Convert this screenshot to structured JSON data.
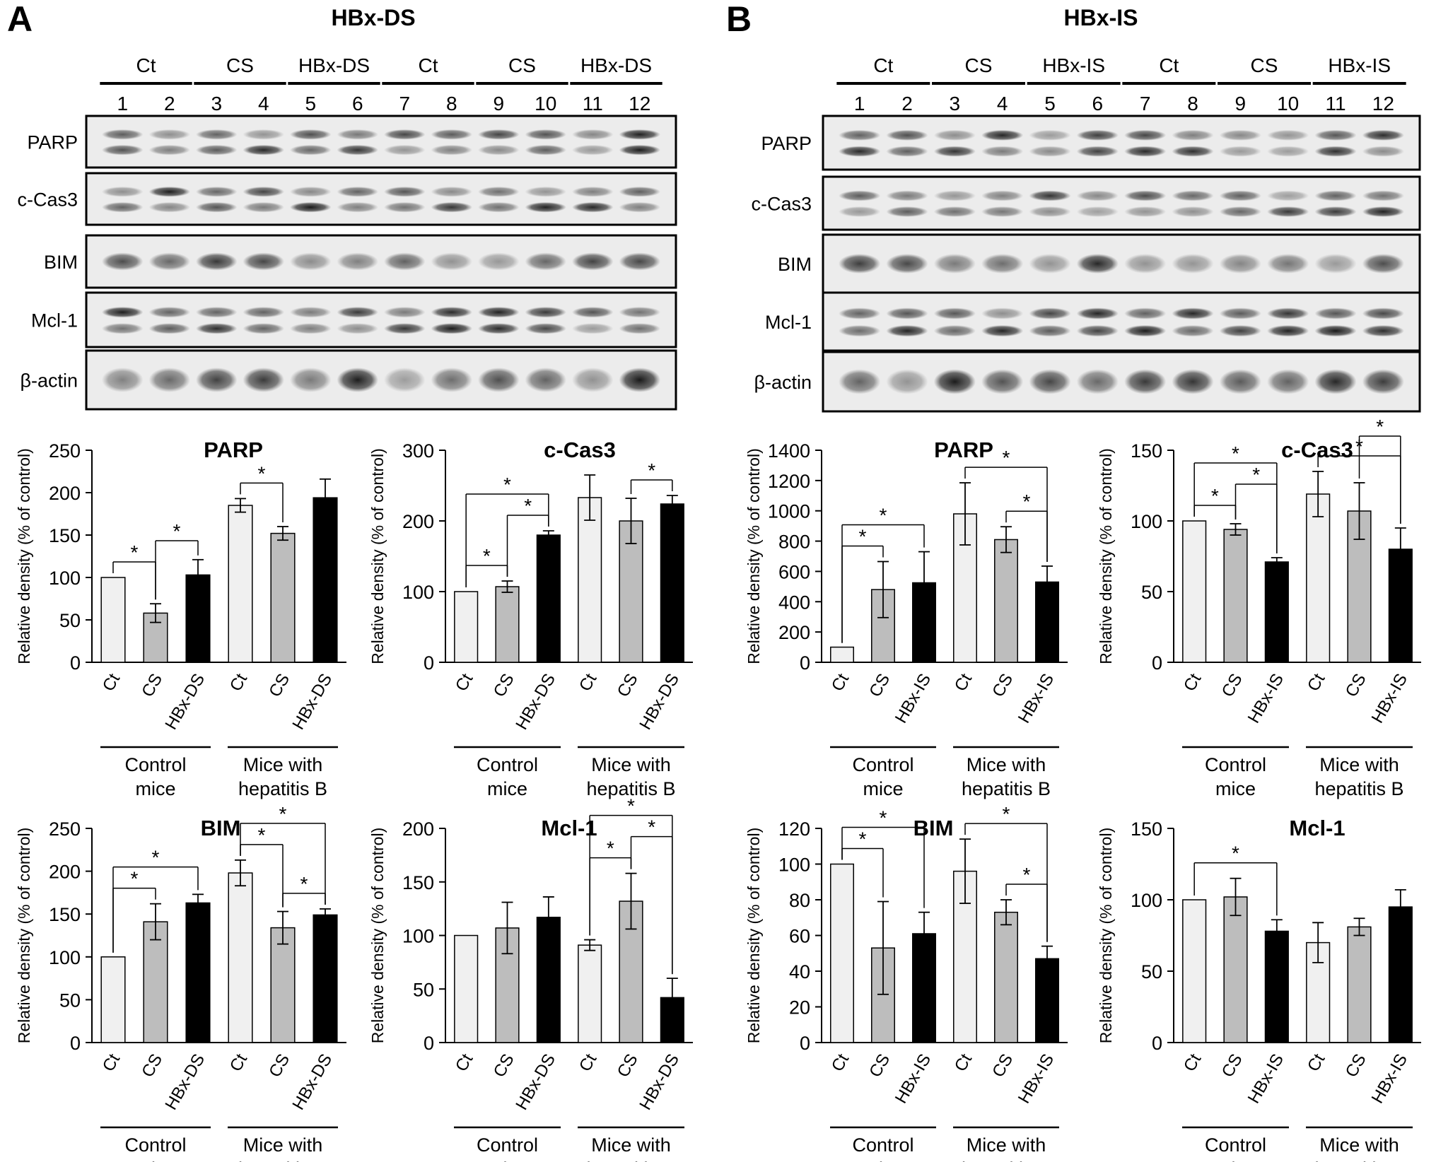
{
  "figure": {
    "panels": [
      {
        "letter": "A",
        "title": "HBx-DS",
        "group_labels": [
          "Ct",
          "CS",
          "HBx-DS",
          "Ct",
          "CS",
          "HBx-DS"
        ],
        "lane_numbers": [
          "1",
          "2",
          "3",
          "4",
          "5",
          "6",
          "7",
          "8",
          "9",
          "10",
          "11",
          "12"
        ],
        "blot_rows": [
          "PARP",
          "c-Cas3",
          "BIM",
          "Mcl-1",
          "β-actin"
        ]
      },
      {
        "letter": "B",
        "title": "HBx-IS",
        "group_labels": [
          "Ct",
          "CS",
          "HBx-IS",
          "Ct",
          "CS",
          "HBx-IS"
        ],
        "lane_numbers": [
          "1",
          "2",
          "3",
          "4",
          "5",
          "6",
          "7",
          "8",
          "9",
          "10",
          "11",
          "12"
        ],
        "blot_rows": [
          "PARP",
          "c-Cas3",
          "BIM",
          "Mcl-1",
          "β-actin"
        ]
      }
    ],
    "group_captions": [
      "Control mice",
      "Mice with hepatitis B"
    ],
    "colors": {
      "light": "#f0f0f0",
      "mid": "#bdbdbd",
      "dark": "#000000"
    }
  },
  "chart_data": [
    {
      "panel": "A",
      "type": "bar",
      "title": "PARP",
      "ylabel": "Relative density (% of control)",
      "ylim": [
        0,
        250
      ],
      "yticks": [
        0,
        50,
        100,
        150,
        200,
        250
      ],
      "categories": [
        "Ct",
        "CS",
        "HBx-DS",
        "Ct",
        "CS",
        "HBx-DS"
      ],
      "values": [
        100,
        58,
        103,
        185,
        152,
        194
      ],
      "errors": [
        0,
        11,
        18,
        8,
        8,
        22
      ],
      "significance": [
        [
          0,
          1
        ],
        [
          1,
          2
        ],
        [
          3,
          4
        ]
      ]
    },
    {
      "panel": "A",
      "type": "bar",
      "title": "c-Cas3",
      "ylabel": "Relative density (% of control)",
      "ylim": [
        0,
        300
      ],
      "yticks": [
        0,
        100,
        200,
        300
      ],
      "categories": [
        "Ct",
        "CS",
        "HBx-DS",
        "Ct",
        "CS",
        "HBx-DS"
      ],
      "values": [
        100,
        107,
        180,
        233,
        200,
        224
      ],
      "errors": [
        0,
        8,
        6,
        32,
        32,
        12
      ],
      "significance": [
        [
          0,
          1
        ],
        [
          1,
          2
        ],
        [
          0,
          2
        ],
        [
          4,
          5
        ]
      ]
    },
    {
      "panel": "A",
      "type": "bar",
      "title": "BIM",
      "ylabel": "Relative density (% of control)",
      "ylim": [
        0,
        250
      ],
      "yticks": [
        0,
        50,
        100,
        150,
        200,
        250
      ],
      "categories": [
        "Ct",
        "CS",
        "HBx-DS",
        "Ct",
        "CS",
        "HBx-DS"
      ],
      "values": [
        100,
        141,
        163,
        198,
        134,
        149
      ],
      "errors": [
        0,
        21,
        10,
        15,
        19,
        7
      ],
      "significance": [
        [
          0,
          1
        ],
        [
          0,
          2
        ],
        [
          3,
          4
        ],
        [
          4,
          5
        ],
        [
          3,
          5
        ]
      ]
    },
    {
      "panel": "A",
      "type": "bar",
      "title": "Mcl-1",
      "ylabel": "Relative density (% of control)",
      "ylim": [
        0,
        200
      ],
      "yticks": [
        0,
        50,
        100,
        150,
        200
      ],
      "categories": [
        "Ct",
        "CS",
        "HBx-DS",
        "Ct",
        "CS",
        "HBx-DS"
      ],
      "values": [
        100,
        107,
        117,
        91,
        132,
        42
      ],
      "errors": [
        0,
        24,
        19,
        5,
        26,
        18
      ],
      "significance": [
        [
          3,
          4
        ],
        [
          4,
          5
        ],
        [
          3,
          5
        ]
      ]
    },
    {
      "panel": "B",
      "type": "bar",
      "title": "PARP",
      "ylabel": "Relative density (% of control)",
      "ylim": [
        0,
        1400
      ],
      "yticks": [
        0,
        200,
        400,
        600,
        800,
        1000,
        1200,
        1400
      ],
      "categories": [
        "Ct",
        "CS",
        "HBx-IS",
        "Ct",
        "CS",
        "HBx-IS"
      ],
      "values": [
        100,
        480,
        525,
        980,
        810,
        530
      ],
      "errors": [
        0,
        185,
        205,
        205,
        85,
        105
      ],
      "significance": [
        [
          0,
          1
        ],
        [
          0,
          2
        ],
        [
          4,
          5
        ],
        [
          3,
          5
        ]
      ]
    },
    {
      "panel": "B",
      "type": "bar",
      "title": "c-Cas3",
      "ylabel": "Relative density (% of control)",
      "ylim": [
        0,
        150
      ],
      "yticks": [
        0,
        50,
        100,
        150
      ],
      "categories": [
        "Ct",
        "CS",
        "HBx-IS",
        "Ct",
        "CS",
        "HBx-IS"
      ],
      "values": [
        100,
        94,
        71,
        119,
        107,
        80
      ],
      "errors": [
        0,
        4,
        3,
        16,
        20,
        15
      ],
      "significance": [
        [
          0,
          1
        ],
        [
          1,
          2
        ],
        [
          0,
          2
        ],
        [
          3,
          5
        ],
        [
          4,
          5
        ]
      ]
    },
    {
      "panel": "B",
      "type": "bar",
      "title": "BIM",
      "ylabel": "Relative density (% of control)",
      "ylim": [
        0,
        120
      ],
      "yticks": [
        0,
        20,
        40,
        60,
        80,
        100,
        120
      ],
      "categories": [
        "Ct",
        "CS",
        "HBx-IS",
        "Ct",
        "CS",
        "HBx-IS"
      ],
      "values": [
        100,
        53,
        61,
        96,
        73,
        47
      ],
      "errors": [
        0,
        26,
        12,
        18,
        7,
        7
      ],
      "significance": [
        [
          0,
          1
        ],
        [
          0,
          2
        ],
        [
          4,
          5
        ],
        [
          3,
          5
        ]
      ]
    },
    {
      "panel": "B",
      "type": "bar",
      "title": "Mcl-1",
      "ylabel": "Relative density (% of control)",
      "ylim": [
        0,
        150
      ],
      "yticks": [
        0,
        50,
        100,
        150
      ],
      "categories": [
        "Ct",
        "CS",
        "HBx-IS",
        "Ct",
        "CS",
        "HBx-IS"
      ],
      "values": [
        100,
        102,
        78,
        70,
        81,
        95
      ],
      "errors": [
        0,
        13,
        8,
        14,
        6,
        12
      ],
      "significance": [
        [
          0,
          2
        ]
      ]
    }
  ]
}
